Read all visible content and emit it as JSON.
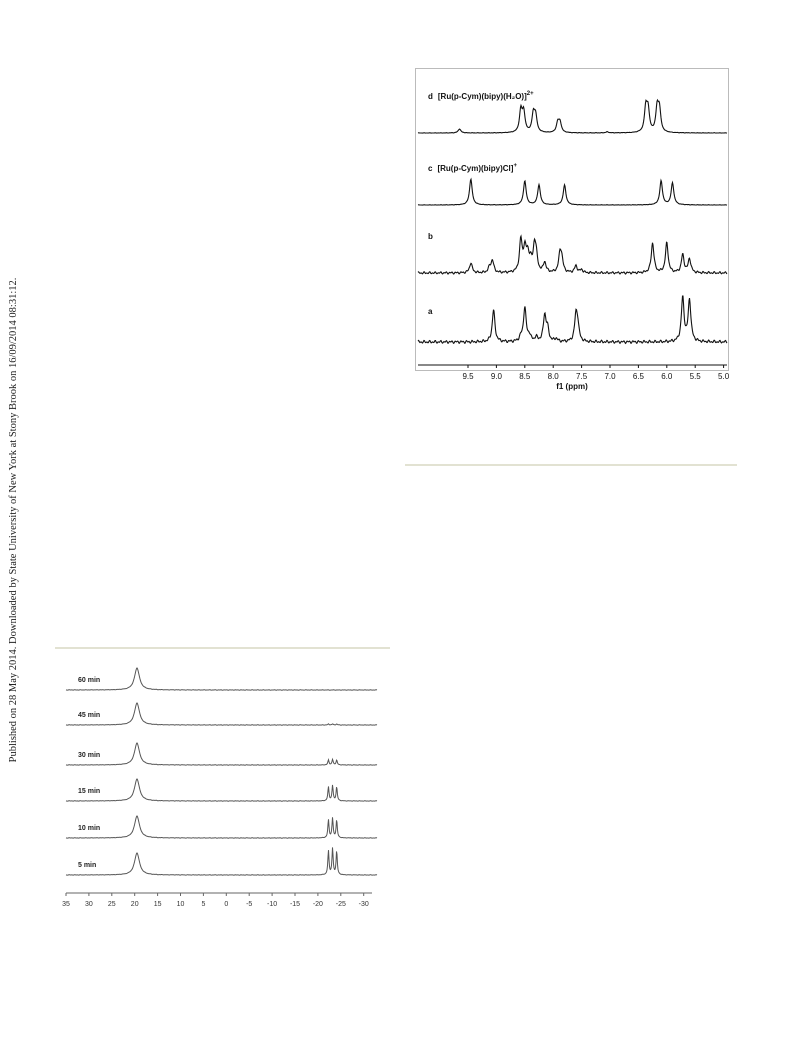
{
  "sidebar": "Published on 28 May 2014. Downloaded by State University of New York at Stony Brook on 16/09/2014 08:31:12.",
  "figure_1": {
    "traces": [
      {
        "label": "d",
        "compound": "[Ru(p-Cym)(bipy)(H₂O)]",
        "charge": "2+"
      },
      {
        "label": "c",
        "compound": "[Ru(p-Cym)(bipy)Cl]",
        "charge": "+"
      },
      {
        "label": "b"
      },
      {
        "label": "a"
      }
    ],
    "x_ticks": [
      "9.5",
      "9.0",
      "8.5",
      "8.0",
      "7.5",
      "7.0",
      "6.5",
      "6.0",
      "5.5",
      "5.0"
    ],
    "x_label": "f1 (ppm)"
  },
  "figure_2": {
    "traces": [
      "60 min",
      "45 min",
      "30 min",
      "15 min",
      "10 min",
      "5 min"
    ],
    "x_ticks": [
      "35",
      "30",
      "25",
      "20",
      "15",
      "10",
      "5",
      "0",
      "-5",
      "-10",
      "-15",
      "-20",
      "-25",
      "-30"
    ]
  }
}
